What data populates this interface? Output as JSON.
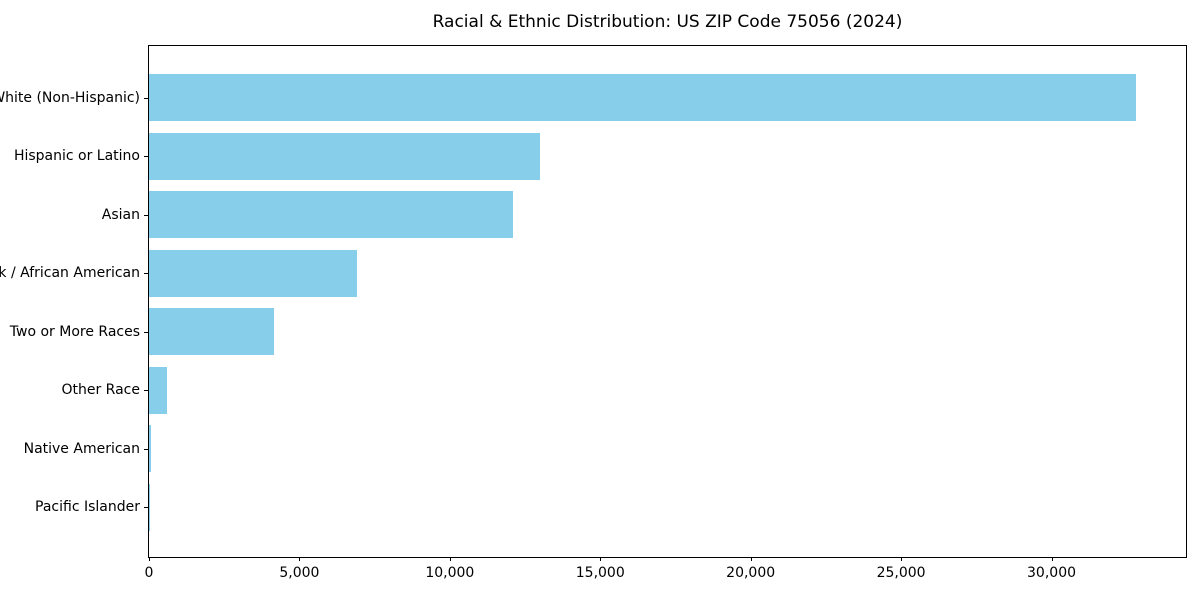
{
  "chart_data": {
    "type": "bar",
    "orientation": "horizontal",
    "title": "Racial & Ethnic Distribution: US ZIP Code 75056 (2024)",
    "categories": [
      "White (Non-Hispanic)",
      "Hispanic or Latino",
      "Asian",
      "Black / African American",
      "Two or More Races",
      "Other Race",
      "Native American",
      "Pacific Islander"
    ],
    "values": [
      32800,
      13000,
      12100,
      6900,
      4150,
      600,
      60,
      20
    ],
    "xlabel": "",
    "ylabel": "",
    "xlim": [
      0,
      34470
    ],
    "xticks": [
      0,
      5000,
      10000,
      15000,
      20000,
      25000,
      30000
    ],
    "xtick_labels": [
      "0",
      "5,000",
      "10,000",
      "15,000",
      "20,000",
      "25,000",
      "30,000"
    ],
    "bar_color": "#87CEEB",
    "axis_color": "#000000",
    "grid": false,
    "legend": "none"
  }
}
